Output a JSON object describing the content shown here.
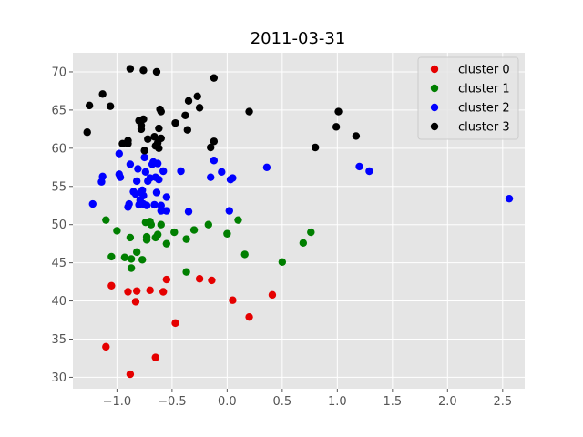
{
  "chart_data": {
    "type": "scatter",
    "title": "2011-03-31",
    "xlabel": "",
    "ylabel": "",
    "xlim": [
      -1.4,
      2.7
    ],
    "ylim": [
      28.5,
      72.5
    ],
    "xticks": [
      -1.0,
      -0.5,
      0.0,
      0.5,
      1.0,
      1.5,
      2.0,
      2.5
    ],
    "xtick_labels": [
      "−1.0",
      "−0.5",
      "0.0",
      "0.5",
      "1.0",
      "1.5",
      "2.0",
      "2.5"
    ],
    "yticks": [
      30,
      35,
      40,
      45,
      50,
      55,
      60,
      65,
      70
    ],
    "ytick_labels": [
      "30",
      "35",
      "40",
      "45",
      "50",
      "55",
      "60",
      "65",
      "70"
    ],
    "grid": true,
    "background": "#e5e5e5",
    "grid_color": "#ffffff",
    "legend_position": "top-right",
    "series": [
      {
        "name": "cluster 0",
        "color": "#e50000",
        "points": [
          [
            -1.1,
            34.0
          ],
          [
            -1.05,
            42.0
          ],
          [
            -0.9,
            41.2
          ],
          [
            -0.88,
            30.4
          ],
          [
            -0.83,
            39.9
          ],
          [
            -0.82,
            41.3
          ],
          [
            -0.7,
            41.4
          ],
          [
            -0.65,
            32.6
          ],
          [
            -0.58,
            41.2
          ],
          [
            -0.55,
            42.8
          ],
          [
            -0.47,
            37.1
          ],
          [
            -0.25,
            42.9
          ],
          [
            -0.14,
            42.7
          ],
          [
            0.05,
            40.1
          ],
          [
            0.2,
            37.9
          ],
          [
            0.41,
            40.8
          ]
        ]
      },
      {
        "name": "cluster 1",
        "color": "#007f00",
        "points": [
          [
            -1.1,
            50.6
          ],
          [
            -1.05,
            45.8
          ],
          [
            -1.0,
            49.2
          ],
          [
            -0.93,
            45.7
          ],
          [
            -0.88,
            48.3
          ],
          [
            -0.87,
            45.5
          ],
          [
            -0.87,
            44.3
          ],
          [
            -0.82,
            46.4
          ],
          [
            -0.77,
            45.4
          ],
          [
            -0.74,
            50.3
          ],
          [
            -0.73,
            48.4
          ],
          [
            -0.73,
            48.0
          ],
          [
            -0.7,
            50.4
          ],
          [
            -0.69,
            50.0
          ],
          [
            -0.65,
            48.3
          ],
          [
            -0.63,
            48.7
          ],
          [
            -0.6,
            50.0
          ],
          [
            -0.55,
            47.5
          ],
          [
            -0.48,
            49.0
          ],
          [
            -0.37,
            43.8
          ],
          [
            -0.37,
            48.1
          ],
          [
            -0.3,
            49.3
          ],
          [
            -0.17,
            50.0
          ],
          [
            0.0,
            48.8
          ],
          [
            0.1,
            50.6
          ],
          [
            0.16,
            46.1
          ],
          [
            0.5,
            45.1
          ],
          [
            0.69,
            47.6
          ],
          [
            0.76,
            49.0
          ]
        ]
      },
      {
        "name": "cluster 2",
        "color": "#0000ff",
        "points": [
          [
            -1.22,
            52.7
          ],
          [
            -1.14,
            55.6
          ],
          [
            -1.13,
            56.3
          ],
          [
            -0.98,
            59.3
          ],
          [
            -0.98,
            56.6
          ],
          [
            -0.97,
            56.2
          ],
          [
            -0.9,
            52.3
          ],
          [
            -0.89,
            52.7
          ],
          [
            -0.88,
            57.9
          ],
          [
            -0.85,
            54.3
          ],
          [
            -0.83,
            54.0
          ],
          [
            -0.82,
            55.7
          ],
          [
            -0.81,
            57.3
          ],
          [
            -0.8,
            52.6
          ],
          [
            -0.79,
            53.2
          ],
          [
            -0.78,
            54.2
          ],
          [
            -0.77,
            54.5
          ],
          [
            -0.76,
            53.8
          ],
          [
            -0.76,
            52.7
          ],
          [
            -0.75,
            58.8
          ],
          [
            -0.74,
            56.9
          ],
          [
            -0.73,
            52.5
          ],
          [
            -0.72,
            55.7
          ],
          [
            -0.7,
            56.1
          ],
          [
            -0.68,
            57.9
          ],
          [
            -0.67,
            58.2
          ],
          [
            -0.66,
            52.6
          ],
          [
            -0.65,
            56.2
          ],
          [
            -0.64,
            54.2
          ],
          [
            -0.63,
            58.0
          ],
          [
            -0.62,
            55.9
          ],
          [
            -0.6,
            52.5
          ],
          [
            -0.6,
            51.8
          ],
          [
            -0.58,
            57.0
          ],
          [
            -0.55,
            53.6
          ],
          [
            -0.55,
            51.8
          ],
          [
            -0.42,
            57.0
          ],
          [
            -0.35,
            51.7
          ],
          [
            -0.15,
            56.2
          ],
          [
            -0.12,
            58.4
          ],
          [
            -0.05,
            56.9
          ],
          [
            0.02,
            51.8
          ],
          [
            0.03,
            55.9
          ],
          [
            0.05,
            56.1
          ],
          [
            0.36,
            57.5
          ],
          [
            1.2,
            57.6
          ],
          [
            1.29,
            57.0
          ],
          [
            2.56,
            53.4
          ]
        ]
      },
      {
        "name": "cluster 3",
        "color": "#000000",
        "points": [
          [
            -1.27,
            62.1
          ],
          [
            -1.25,
            65.6
          ],
          [
            -1.13,
            67.1
          ],
          [
            -1.06,
            65.5
          ],
          [
            -0.95,
            60.6
          ],
          [
            -0.9,
            61.0
          ],
          [
            -0.9,
            60.6
          ],
          [
            -0.88,
            70.4
          ],
          [
            -0.8,
            63.6
          ],
          [
            -0.78,
            63.0
          ],
          [
            -0.78,
            62.5
          ],
          [
            -0.76,
            63.8
          ],
          [
            -0.76,
            70.2
          ],
          [
            -0.75,
            59.7
          ],
          [
            -0.72,
            61.2
          ],
          [
            -0.66,
            61.5
          ],
          [
            -0.65,
            60.3
          ],
          [
            -0.64,
            70.0
          ],
          [
            -0.63,
            60.7
          ],
          [
            -0.62,
            60.0
          ],
          [
            -0.62,
            62.6
          ],
          [
            -0.61,
            65.1
          ],
          [
            -0.6,
            64.8
          ],
          [
            -0.6,
            61.3
          ],
          [
            -0.47,
            63.3
          ],
          [
            -0.38,
            64.3
          ],
          [
            -0.36,
            62.4
          ],
          [
            -0.35,
            66.2
          ],
          [
            -0.27,
            66.8
          ],
          [
            -0.25,
            65.3
          ],
          [
            -0.15,
            60.1
          ],
          [
            -0.12,
            60.9
          ],
          [
            -0.12,
            69.2
          ],
          [
            0.2,
            64.8
          ],
          [
            0.8,
            60.1
          ],
          [
            0.99,
            62.8
          ],
          [
            1.01,
            64.8
          ],
          [
            1.17,
            61.6
          ]
        ]
      }
    ]
  }
}
